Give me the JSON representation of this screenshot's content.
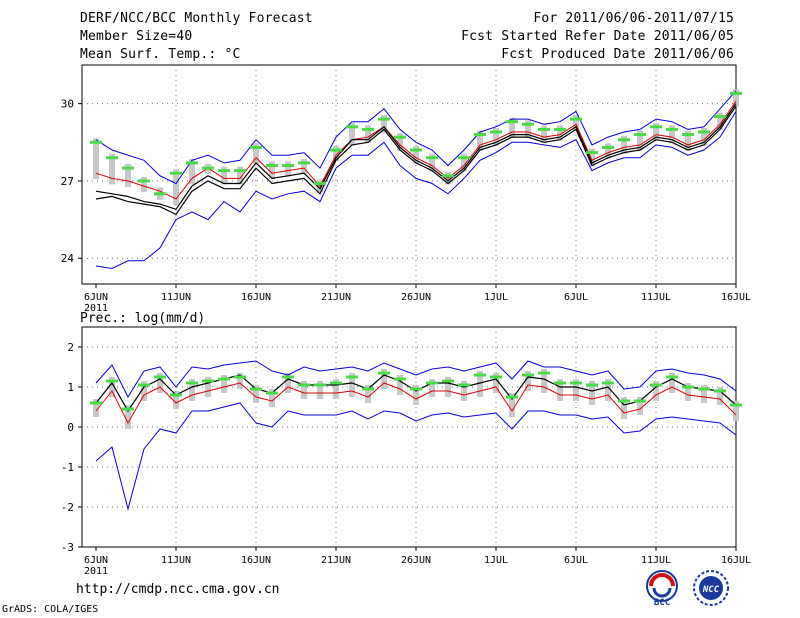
{
  "header": {
    "title": "DERF/NCC/BCC Monthly Forecast",
    "member": "Member Size=40",
    "variable": "Mean Surf. Temp.: °C",
    "period": "For 2011/06/06-2011/07/15",
    "refer": "Fcst Started Refer Date 2011/06/05",
    "produced": "Fcst Produced Date 2011/06/06"
  },
  "footer": {
    "url": "http://cmdp.ncc.cma.gov.cn",
    "grads": "GrADS: COLA/IGES",
    "logo1_text": "BCC",
    "logo2_text": "NCC"
  },
  "colors": {
    "upper": "#0000dd",
    "lower": "#0000dd",
    "mean": "#dd0000",
    "center": "#000000",
    "obs": "#44dd44",
    "box": "#c8c8c8"
  },
  "chart_data": [
    {
      "type": "line",
      "title": "Mean Surf. Temp.: °C",
      "x_tick_labels": [
        "6JUN",
        "11JUN",
        "16JUN",
        "21JUN",
        "26JUN",
        "1JUL",
        "6JUL",
        "11JUL",
        "16JUL"
      ],
      "x_year_label": "2011",
      "ylim": [
        23,
        31.5
      ],
      "y_ticks": [
        24,
        27,
        30
      ],
      "series": [
        {
          "name": "upper",
          "values": [
            28.6,
            28.2,
            28.0,
            27.8,
            27.2,
            26.9,
            27.8,
            28.0,
            27.7,
            27.8,
            28.6,
            28.0,
            28.0,
            28.1,
            27.5,
            28.7,
            29.3,
            29.3,
            29.8,
            29.0,
            28.5,
            28.2,
            27.6,
            28.2,
            28.9,
            29.1,
            29.4,
            29.4,
            29.2,
            29.3,
            29.7,
            28.4,
            28.7,
            28.9,
            29.0,
            29.4,
            29.3,
            29.0,
            29.1,
            29.8,
            30.5
          ]
        },
        {
          "name": "mean",
          "values": [
            27.3,
            27.1,
            27.0,
            26.8,
            26.6,
            26.3,
            27.1,
            27.5,
            27.1,
            27.1,
            27.9,
            27.3,
            27.4,
            27.5,
            26.8,
            28.0,
            28.6,
            28.7,
            29.1,
            28.4,
            27.9,
            27.6,
            27.1,
            27.6,
            28.4,
            28.6,
            28.9,
            28.9,
            28.7,
            28.8,
            29.2,
            27.8,
            28.1,
            28.3,
            28.4,
            28.8,
            28.7,
            28.4,
            28.6,
            29.2,
            30.1
          ]
        },
        {
          "name": "center",
          "values": [
            26.6,
            26.5,
            26.4,
            26.2,
            26.1,
            25.9,
            26.8,
            27.2,
            26.9,
            26.9,
            27.7,
            27.1,
            27.2,
            27.3,
            26.7,
            27.9,
            28.6,
            28.6,
            29.1,
            28.3,
            27.8,
            27.5,
            27.0,
            27.5,
            28.3,
            28.5,
            28.8,
            28.8,
            28.6,
            28.7,
            29.1,
            27.7,
            28.0,
            28.2,
            28.3,
            28.7,
            28.6,
            28.3,
            28.5,
            29.1,
            30.0
          ]
        },
        {
          "name": "center_lower",
          "values": [
            26.3,
            26.4,
            26.2,
            26.1,
            26.0,
            25.7,
            26.6,
            27.0,
            26.7,
            26.7,
            27.5,
            26.9,
            27.0,
            27.1,
            26.5,
            27.8,
            28.4,
            28.5,
            29.0,
            28.2,
            27.7,
            27.4,
            26.9,
            27.4,
            28.2,
            28.4,
            28.7,
            28.7,
            28.5,
            28.6,
            29.0,
            27.6,
            27.9,
            28.1,
            28.2,
            28.6,
            28.5,
            28.2,
            28.4,
            29.0,
            29.9
          ]
        },
        {
          "name": "lower",
          "values": [
            23.7,
            23.6,
            23.9,
            23.9,
            24.4,
            25.5,
            25.8,
            25.5,
            26.2,
            25.8,
            26.6,
            26.3,
            26.5,
            26.6,
            26.2,
            27.5,
            28.0,
            28.0,
            28.5,
            27.6,
            27.1,
            26.9,
            26.5,
            27.1,
            27.8,
            28.1,
            28.5,
            28.5,
            28.4,
            28.3,
            28.6,
            27.4,
            27.7,
            27.9,
            27.9,
            28.4,
            28.3,
            28.0,
            28.2,
            28.7,
            29.7
          ]
        },
        {
          "name": "observed",
          "values": [
            28.5,
            27.9,
            27.5,
            27.0,
            26.5,
            27.3,
            27.7,
            27.5,
            27.4,
            27.4,
            28.3,
            27.6,
            27.6,
            27.7,
            26.9,
            28.2,
            29.1,
            29.0,
            29.4,
            28.7,
            28.2,
            27.9,
            27.2,
            27.9,
            28.8,
            28.9,
            29.3,
            29.2,
            29.0,
            29.0,
            29.4,
            28.1,
            28.3,
            28.6,
            28.8,
            29.1,
            29.0,
            28.8,
            28.9,
            29.5,
            30.4
          ]
        }
      ]
    },
    {
      "type": "line",
      "title": "Prec.: log(mm/d)",
      "x_tick_labels": [
        "6JUN",
        "11JUN",
        "16JUN",
        "21JUN",
        "26JUN",
        "1JUL",
        "6JUL",
        "11JUL",
        "16JUL"
      ],
      "x_year_label": "2011",
      "ylim": [
        -3,
        2.5
      ],
      "y_ticks": [
        -3,
        -2,
        -1,
        0,
        1,
        2
      ],
      "series": [
        {
          "name": "upper",
          "values": [
            1.1,
            1.55,
            0.75,
            1.4,
            1.5,
            1.0,
            1.5,
            1.45,
            1.55,
            1.6,
            1.65,
            1.4,
            1.3,
            1.5,
            1.4,
            1.45,
            1.5,
            1.4,
            1.6,
            1.45,
            1.3,
            1.45,
            1.5,
            1.4,
            1.5,
            1.6,
            1.2,
            1.65,
            1.5,
            1.5,
            1.4,
            1.3,
            1.4,
            0.95,
            1.0,
            1.4,
            1.45,
            1.35,
            1.3,
            1.2,
            0.9
          ]
        },
        {
          "name": "center",
          "values": [
            0.6,
            1.1,
            0.4,
            1.0,
            1.2,
            0.8,
            1.0,
            1.1,
            1.2,
            1.3,
            0.95,
            0.85,
            1.2,
            1.05,
            1.05,
            1.05,
            1.1,
            0.95,
            1.3,
            1.15,
            0.9,
            1.1,
            1.1,
            1.0,
            1.1,
            1.2,
            0.7,
            1.25,
            1.2,
            1.0,
            1.0,
            0.9,
            1.0,
            0.55,
            0.65,
            1.0,
            1.2,
            1.0,
            0.95,
            0.9,
            0.55
          ]
        },
        {
          "name": "mean",
          "values": [
            0.4,
            0.9,
            0.1,
            0.8,
            1.0,
            0.6,
            0.8,
            0.9,
            1.0,
            1.1,
            0.75,
            0.65,
            1.0,
            0.85,
            0.85,
            0.85,
            0.9,
            0.75,
            1.1,
            0.95,
            0.7,
            0.9,
            0.9,
            0.8,
            0.9,
            1.0,
            0.4,
            1.05,
            1.0,
            0.8,
            0.8,
            0.7,
            0.8,
            0.35,
            0.45,
            0.8,
            1.0,
            0.8,
            0.75,
            0.7,
            0.3
          ]
        },
        {
          "name": "lower",
          "values": [
            -0.85,
            -0.5,
            -2.05,
            -0.55,
            -0.05,
            -0.15,
            0.4,
            0.4,
            0.5,
            0.6,
            0.1,
            0.0,
            0.4,
            0.3,
            0.3,
            0.3,
            0.4,
            0.2,
            0.4,
            0.35,
            0.15,
            0.3,
            0.35,
            0.25,
            0.3,
            0.35,
            -0.05,
            0.4,
            0.4,
            0.3,
            0.3,
            0.2,
            0.25,
            -0.15,
            -0.1,
            0.2,
            0.25,
            0.2,
            0.15,
            0.1,
            -0.2
          ]
        },
        {
          "name": "observed",
          "values": [
            0.6,
            1.15,
            0.45,
            1.05,
            1.25,
            0.8,
            1.1,
            1.15,
            1.2,
            1.25,
            0.95,
            0.85,
            1.25,
            1.05,
            1.05,
            1.1,
            1.25,
            0.95,
            1.35,
            1.2,
            0.95,
            1.1,
            1.15,
            1.05,
            1.3,
            1.25,
            0.75,
            1.3,
            1.35,
            1.1,
            1.1,
            1.05,
            1.1,
            0.65,
            0.65,
            1.05,
            1.25,
            1.0,
            0.95,
            0.9,
            0.55
          ]
        }
      ]
    }
  ]
}
